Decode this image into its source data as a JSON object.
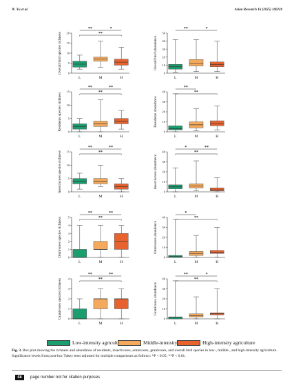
{
  "header": {
    "left": "W. Xu et al.",
    "right": "Avian Research 16 (2025) 100228"
  },
  "colors": {
    "L": "#1a9e6e",
    "M": "#f4a95c",
    "H": "#e8622e",
    "whisker": "#555555",
    "sig": "#222222"
  },
  "chart_data": [
    {
      "type": "box",
      "ylabel": "Overall bird species richness",
      "categories": [
        "L",
        "M",
        "H"
      ],
      "ylim": [
        0,
        20
      ],
      "yticks": [
        0,
        5,
        10,
        15,
        20
      ],
      "boxes": [
        {
          "min": 2,
          "q1": 3,
          "median": 4.5,
          "q3": 6,
          "max": 9
        },
        {
          "min": 3,
          "q1": 6,
          "median": 7,
          "q3": 8,
          "max": 16
        },
        {
          "min": 2,
          "q1": 4,
          "median": 5.5,
          "q3": 7,
          "max": 13
        }
      ],
      "significance": [
        {
          "label": "**",
          "pair": [
            "L",
            "M"
          ]
        },
        {
          "label": "**",
          "pair": [
            "L",
            "H"
          ]
        },
        {
          "label": "*",
          "pair": [
            "M",
            "H"
          ]
        }
      ]
    },
    {
      "type": "box",
      "ylabel": "Overall bird abundance",
      "categories": [
        "L",
        "M",
        "H"
      ],
      "ylim": [
        0,
        50
      ],
      "yticks": [
        0,
        10,
        20,
        30,
        40,
        50
      ],
      "boxes": [
        {
          "min": 1,
          "q1": 5,
          "median": 8,
          "q3": 11,
          "max": 42
        },
        {
          "min": 2,
          "q1": 9,
          "median": 12,
          "q3": 17,
          "max": 42
        },
        {
          "min": 2,
          "q1": 8,
          "median": 11,
          "q3": 14,
          "max": 40
        }
      ],
      "significance": [
        {
          "label": "**",
          "pair": [
            "L",
            "M"
          ]
        },
        {
          "label": "*",
          "pair": [
            "M",
            "H"
          ]
        }
      ]
    },
    {
      "type": "box",
      "ylabel": "Residents species richness",
      "categories": [
        "L",
        "M",
        "H"
      ],
      "ylim": [
        0,
        15
      ],
      "yticks": [
        0,
        5,
        10,
        15
      ],
      "boxes": [
        {
          "min": 0,
          "q1": 1,
          "median": 2,
          "q3": 3,
          "max": 5
        },
        {
          "min": 0,
          "q1": 2,
          "median": 3,
          "q3": 4,
          "max": 12
        },
        {
          "min": 1,
          "q1": 3,
          "median": 4,
          "q3": 5,
          "max": 8
        }
      ],
      "significance": [
        {
          "label": "**",
          "pair": [
            "L",
            "M"
          ]
        },
        {
          "label": "**",
          "pair": [
            "L",
            "H"
          ]
        },
        {
          "label": "**",
          "pair": [
            "M",
            "H"
          ]
        }
      ]
    },
    {
      "type": "box",
      "ylabel": "Residents abundance",
      "categories": [
        "L",
        "M",
        "H"
      ],
      "ylim": [
        0,
        40
      ],
      "yticks": [
        0,
        10,
        20,
        30,
        40
      ],
      "boxes": [
        {
          "min": 0,
          "q1": 2,
          "median": 3,
          "q3": 6,
          "max": 38
        },
        {
          "min": 1,
          "q1": 4,
          "median": 7,
          "q3": 10,
          "max": 23
        },
        {
          "min": 2,
          "q1": 6,
          "median": 8,
          "q3": 11,
          "max": 26
        }
      ],
      "significance": [
        {
          "label": "**",
          "pair": [
            "L",
            "M"
          ]
        },
        {
          "label": "**",
          "pair": [
            "L",
            "H"
          ]
        }
      ]
    },
    {
      "type": "box",
      "ylabel": "Insectivores species richness",
      "categories": [
        "L",
        "M",
        "H"
      ],
      "ylim": [
        0,
        15
      ],
      "yticks": [
        0,
        5,
        10,
        15
      ],
      "boxes": [
        {
          "min": 1,
          "q1": 3,
          "median": 4,
          "q3": 5,
          "max": 7
        },
        {
          "min": 2,
          "q1": 3,
          "median": 4,
          "q3": 5,
          "max": 10
        },
        {
          "min": 0,
          "q1": 1,
          "median": 2,
          "q3": 3,
          "max": 5
        }
      ],
      "significance": [
        {
          "label": "**",
          "pair": [
            "L",
            "M"
          ]
        },
        {
          "label": "**",
          "pair": [
            "L",
            "H"
          ]
        },
        {
          "label": "**",
          "pair": [
            "M",
            "H"
          ]
        }
      ]
    },
    {
      "type": "box",
      "ylabel": "Insectivores abundance",
      "categories": [
        "L",
        "M",
        "H"
      ],
      "ylim": [
        0,
        40
      ],
      "yticks": [
        0,
        10,
        20,
        30,
        40
      ],
      "boxes": [
        {
          "min": 0,
          "q1": 3,
          "median": 5,
          "q3": 7,
          "max": 24
        },
        {
          "min": 1,
          "q1": 4,
          "median": 6,
          "q3": 8,
          "max": 31
        },
        {
          "min": 0,
          "q1": 1,
          "median": 2,
          "q3": 4,
          "max": 14
        }
      ],
      "significance": [
        {
          "label": "*",
          "pair": [
            "L",
            "M"
          ]
        },
        {
          "label": "**",
          "pair": [
            "L",
            "H"
          ]
        },
        {
          "label": "**",
          "pair": [
            "M",
            "H"
          ]
        }
      ]
    },
    {
      "type": "box",
      "ylabel": "Omnivores species richness",
      "categories": [
        "L",
        "M",
        "H"
      ],
      "ylim": [
        0,
        5
      ],
      "yticks": [
        0,
        1,
        2,
        3,
        4,
        5
      ],
      "boxes": [
        {
          "min": 0,
          "q1": 0,
          "median": 0,
          "q3": 1,
          "max": 4
        },
        {
          "min": 0,
          "q1": 1,
          "median": 1,
          "q3": 2,
          "max": 4
        },
        {
          "min": 0,
          "q1": 1,
          "median": 2,
          "q3": 3,
          "max": 4
        }
      ],
      "significance": [
        {
          "label": "**",
          "pair": [
            "L",
            "M"
          ]
        },
        {
          "label": "**",
          "pair": [
            "L",
            "H"
          ]
        },
        {
          "label": "**",
          "pair": [
            "M",
            "H"
          ]
        }
      ]
    },
    {
      "type": "box",
      "ylabel": "Omnivores abundance",
      "categories": [
        "L",
        "M",
        "H"
      ],
      "ylim": [
        0,
        40
      ],
      "yticks": [
        0,
        10,
        20,
        30,
        40
      ],
      "boxes": [
        {
          "min": 0,
          "q1": 0,
          "median": 1,
          "q3": 2,
          "max": 38
        },
        {
          "min": 0,
          "q1": 2,
          "median": 4,
          "q3": 6,
          "max": 22
        },
        {
          "min": 0,
          "q1": 4,
          "median": 5,
          "q3": 7,
          "max": 30
        }
      ],
      "significance": [
        {
          "label": "*",
          "pair": [
            "L",
            "M"
          ]
        },
        {
          "label": "**",
          "pair": [
            "L",
            "H"
          ]
        }
      ]
    },
    {
      "type": "box",
      "ylabel": "Granivores species richness",
      "categories": [
        "L",
        "M",
        "H"
      ],
      "ylim": [
        0,
        4
      ],
      "yticks": [
        0,
        1,
        2,
        3,
        4
      ],
      "boxes": [
        {
          "min": 0,
          "q1": 0,
          "median": 0,
          "q3": 1,
          "max": 2
        },
        {
          "min": 0,
          "q1": 1,
          "median": 2,
          "q3": 2,
          "max": 3
        },
        {
          "min": 0,
          "q1": 1,
          "median": 2,
          "q3": 2,
          "max": 3
        }
      ],
      "significance": [
        {
          "label": "**",
          "pair": [
            "L",
            "M"
          ]
        },
        {
          "label": "**",
          "pair": [
            "L",
            "H"
          ]
        },
        {
          "label": "**",
          "pair": [
            "M",
            "H"
          ]
        }
      ]
    },
    {
      "type": "box",
      "ylabel": "Granivores abundance",
      "categories": [
        "L",
        "M",
        "H"
      ],
      "ylim": [
        0,
        40
      ],
      "yticks": [
        0,
        10,
        20,
        30,
        40
      ],
      "boxes": [
        {
          "min": 0,
          "q1": 0,
          "median": 1,
          "q3": 2,
          "max": 38
        },
        {
          "min": 0,
          "q1": 2,
          "median": 3,
          "q3": 5,
          "max": 22
        },
        {
          "min": 0,
          "q1": 4,
          "median": 5,
          "q3": 6,
          "max": 30
        }
      ],
      "significance": [
        {
          "label": "**",
          "pair": [
            "L",
            "M"
          ]
        },
        {
          "label": "*",
          "pair": [
            "M",
            "H"
          ]
        },
        {
          "label": "**",
          "pair": [
            "L",
            "H"
          ]
        }
      ]
    }
  ],
  "legend": {
    "low": "Low-intensity agriculture",
    "mid": "Middle-intensity agriculture",
    "high": "High-intensity agriculture"
  },
  "caption": {
    "label": "Fig. 3.",
    "text": " Box plot showing the richness and abundance of residents, insectivores, omnivores, granivores, and overall bird species in low-, middle-, and high-intensity agriculture. Significance levels from post-hoc Tukey tests adjusted for multiple comparisons as follows: *P < 0.05; **P < 0.01."
  },
  "footer": {
    "page": "68",
    "note": "page number not for citation purposes"
  }
}
